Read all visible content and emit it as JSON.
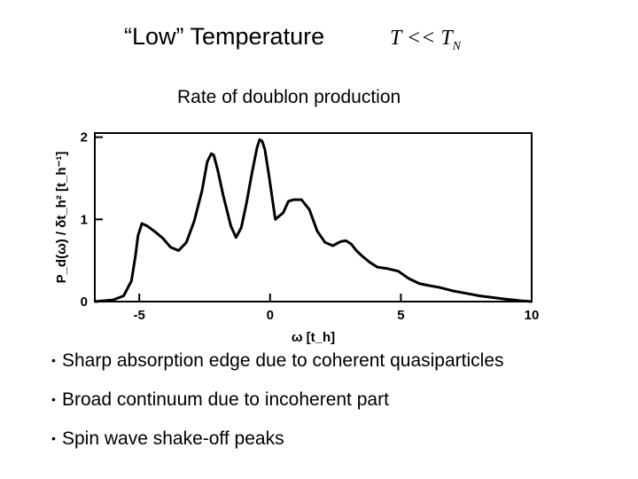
{
  "slide": {
    "title": "“Low” Temperature",
    "condition": {
      "lhs": "T",
      "op": "<<",
      "rhs": "T",
      "rhs_sub": "N"
    },
    "subtitle": "Rate of doublon production",
    "bullets": [
      "Sharp absorption edge due to coherent quasiparticles",
      "Broad continuum due to incoherent part",
      "Spin wave shake-off peaks"
    ]
  },
  "chart_data": {
    "type": "line",
    "title": "",
    "xlabel": "ω [t_h]",
    "ylabel": "P_d(ω) / δt_h² [t_h⁻¹]",
    "xlim": [
      -6.7,
      10
    ],
    "ylim": [
      0,
      2.05
    ],
    "x_ticks": [
      -5,
      0,
      5,
      10
    ],
    "x_tick_labels": [
      "-5",
      "0",
      "5",
      "10"
    ],
    "y_ticks": [
      0,
      1,
      2
    ],
    "y_tick_labels": [
      "0",
      "1",
      "2"
    ],
    "grid": false,
    "series": [
      {
        "name": "",
        "x": [
          -6.7,
          -6.0,
          -5.6,
          -5.3,
          -5.15,
          -5.05,
          -4.9,
          -4.7,
          -4.4,
          -4.1,
          -3.8,
          -3.5,
          -3.2,
          -2.9,
          -2.6,
          -2.4,
          -2.25,
          -2.15,
          -2.0,
          -1.8,
          -1.5,
          -1.3,
          -1.1,
          -0.9,
          -0.7,
          -0.5,
          -0.4,
          -0.3,
          -0.2,
          -0.05,
          0.2,
          0.5,
          0.7,
          0.9,
          1.2,
          1.5,
          1.8,
          2.1,
          2.4,
          2.7,
          2.9,
          3.1,
          3.3,
          3.5,
          3.8,
          4.1,
          4.5,
          4.9,
          5.3,
          5.7,
          6.0,
          6.5,
          7.0,
          7.5,
          8.0,
          8.5,
          9.0,
          9.3,
          9.6,
          9.8,
          10.0
        ],
        "y": [
          0.0,
          0.02,
          0.07,
          0.25,
          0.55,
          0.8,
          0.95,
          0.92,
          0.85,
          0.77,
          0.66,
          0.62,
          0.72,
          0.98,
          1.35,
          1.7,
          1.8,
          1.78,
          1.6,
          1.3,
          0.92,
          0.78,
          0.9,
          1.2,
          1.55,
          1.87,
          1.97,
          1.95,
          1.85,
          1.55,
          1.0,
          1.08,
          1.22,
          1.24,
          1.24,
          1.12,
          0.86,
          0.72,
          0.68,
          0.73,
          0.74,
          0.7,
          0.62,
          0.56,
          0.48,
          0.42,
          0.4,
          0.37,
          0.28,
          0.22,
          0.2,
          0.17,
          0.13,
          0.1,
          0.07,
          0.05,
          0.03,
          0.02,
          0.01,
          0.005,
          0.0
        ]
      }
    ]
  }
}
